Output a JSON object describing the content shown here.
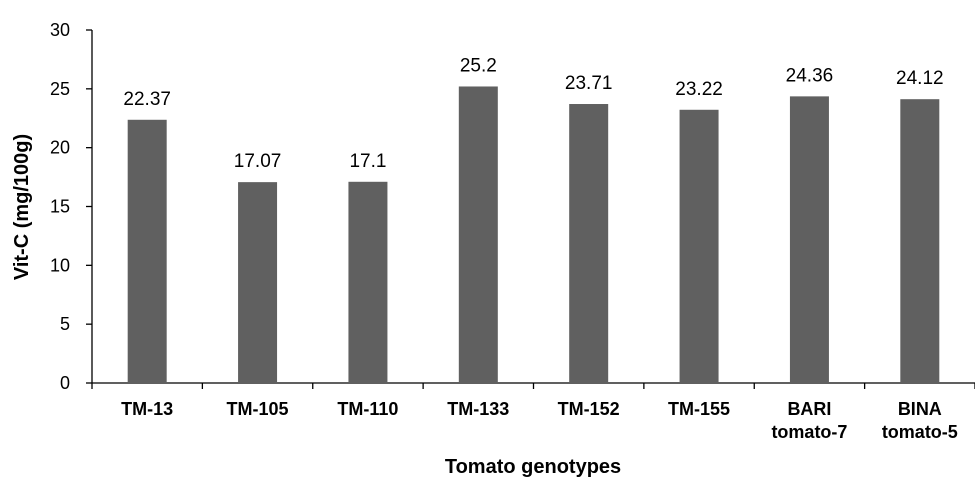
{
  "chart_data": {
    "type": "bar",
    "categories": [
      [
        "TM-13"
      ],
      [
        "TM-105"
      ],
      [
        "TM-110"
      ],
      [
        "TM-133"
      ],
      [
        "TM-152"
      ],
      [
        "TM-155"
      ],
      [
        "BARI",
        "tomato-7"
      ],
      [
        "BINA",
        "tomato-5"
      ]
    ],
    "values": [
      22.37,
      17.07,
      17.1,
      25.2,
      23.71,
      23.22,
      24.36,
      24.12
    ],
    "data_labels": [
      "22.37",
      "17.07",
      "17.1",
      "25.2",
      "23.71",
      "23.22",
      "24.36",
      "24.12"
    ],
    "title": "",
    "xlabel": "Tomato genotypes",
    "ylabel": "Vit-C (mg/100g)",
    "ylim": [
      0,
      30
    ],
    "yticks": [
      "0",
      "5",
      "10",
      "15",
      "20",
      "25",
      "30"
    ],
    "grid": false,
    "legend": "none",
    "colors": {
      "bar": "#606060",
      "axis": "#000000",
      "text": "#000000"
    }
  }
}
